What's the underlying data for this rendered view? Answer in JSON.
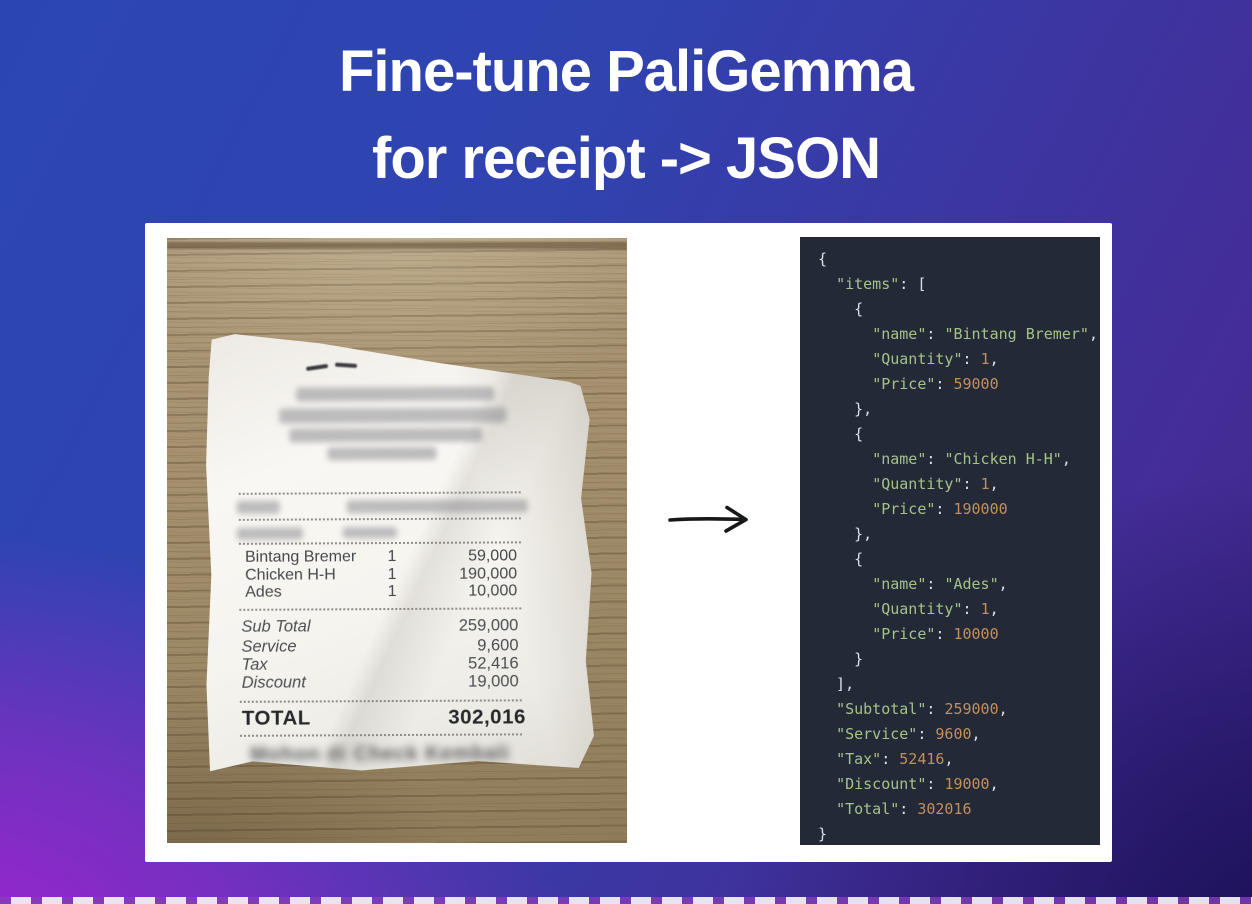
{
  "title": {
    "line1": "Fine-tune PaliGemma",
    "line2": "for receipt -> JSON"
  },
  "receipt": {
    "items": [
      {
        "name": "Bintang Bremer",
        "qty": "1",
        "price": "59,000"
      },
      {
        "name": "Chicken H-H",
        "qty": "1",
        "price": "190,000"
      },
      {
        "name": "Ades",
        "qty": "1",
        "price": "10,000"
      }
    ],
    "summary": [
      {
        "label": "Sub Total",
        "value": "259,000"
      },
      {
        "label": "Service",
        "value": "9,600"
      },
      {
        "label": "Tax",
        "value": "52,416"
      },
      {
        "label": "Discount",
        "value": "19,000"
      }
    ],
    "total": {
      "label": "TOTAL",
      "value": "302,016"
    },
    "footer_note": "Mohon di Check Kembali"
  },
  "json_output": {
    "items": [
      {
        "name": "Bintang Bremer",
        "Quantity": 1,
        "Price": 59000
      },
      {
        "name": "Chicken H-H",
        "Quantity": 1,
        "Price": 190000
      },
      {
        "name": "Ades",
        "Quantity": 1,
        "Price": 10000
      }
    ],
    "Subtotal": 259000,
    "Service": 9600,
    "Tax": 52416,
    "Discount": 19000,
    "Total": 302016
  },
  "icons": {
    "arrow": "right-arrow"
  },
  "colors": {
    "code_bg": "#232936",
    "code_string": "#a6c28b",
    "code_number": "#c3905d",
    "code_punct": "#dbe0e8",
    "accent_arrow": "#17181a",
    "background_blue": "#2b46b2",
    "background_purple": "#ac1fd3",
    "background_indigo": "#2a1d6e",
    "card_bg": "#ffffff"
  }
}
